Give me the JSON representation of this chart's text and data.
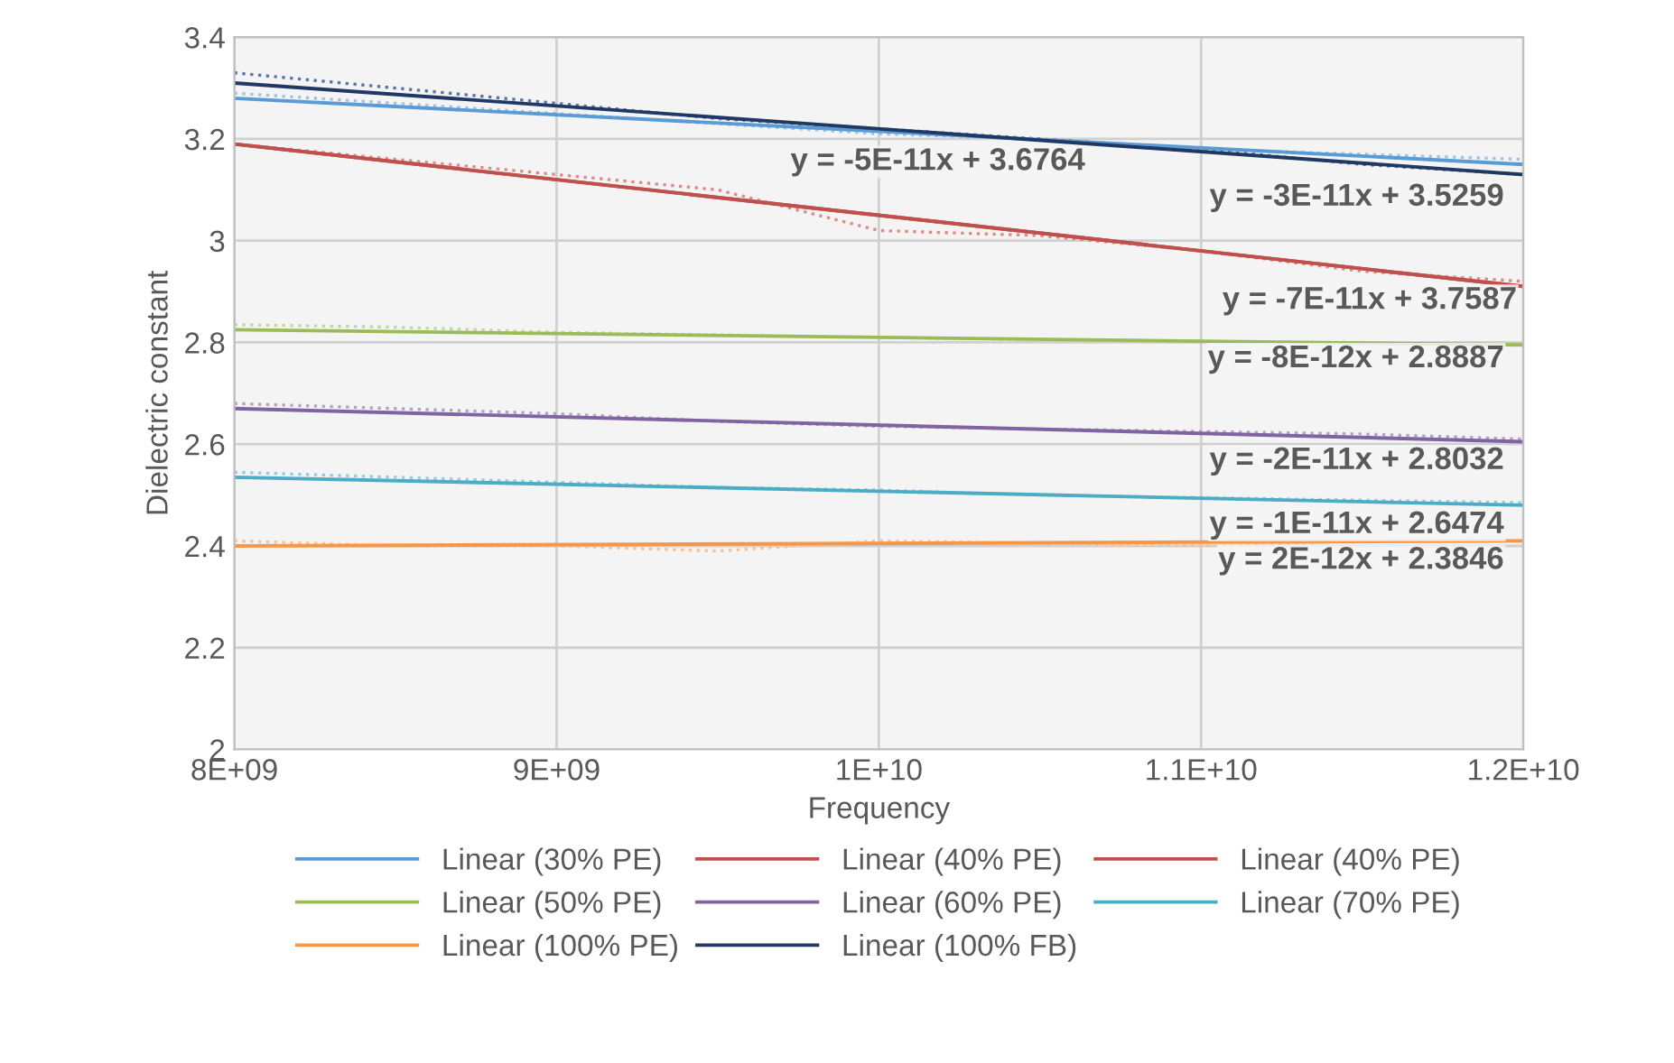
{
  "chart_data": {
    "type": "line",
    "xlabel": "Frequency",
    "ylabel": "Dielectric constant",
    "xlim": [
      8000000000,
      12000000000
    ],
    "xticks": [
      {
        "value": 8000000000,
        "label": "8E+09"
      },
      {
        "value": 9000000000,
        "label": "9E+09"
      },
      {
        "value": 10000000000,
        "label": "1E+10"
      },
      {
        "value": 11000000000,
        "label": "1.1E+10"
      },
      {
        "value": 12000000000,
        "label": "1.2E+10"
      }
    ],
    "ylim": [
      2,
      3.4
    ],
    "yticks": [
      2,
      2.2,
      2.4,
      2.6,
      2.8,
      3,
      3.2,
      3.4
    ],
    "grid": true,
    "legend": "bottom",
    "series": [
      {
        "line_style": "dotted",
        "color": "#9dc3e6",
        "x": [
          8000000000,
          8500000000,
          9000000000,
          9500000000,
          10000000000,
          10500000000,
          11000000000,
          11500000000,
          12000000000
        ],
        "values": [
          3.29,
          3.27,
          3.25,
          3.23,
          3.21,
          3.2,
          3.18,
          3.17,
          3.16
        ]
      },
      {
        "line_style": "dotted",
        "color": "#e08a88",
        "x": [
          8000000000,
          8500000000,
          9000000000,
          9500000000,
          10000000000,
          10500000000,
          11000000000,
          11500000000,
          12000000000
        ],
        "values": [
          3.19,
          3.16,
          3.13,
          3.1,
          3.02,
          3.01,
          2.98,
          2.94,
          2.92
        ]
      },
      {
        "line_style": "dotted",
        "color": "#c3d69b",
        "x": [
          8000000000,
          8500000000,
          9000000000,
          9500000000,
          10000000000,
          10500000000,
          11000000000,
          11500000000,
          12000000000
        ],
        "values": [
          2.835,
          2.83,
          2.82,
          2.815,
          2.81,
          2.805,
          2.8,
          2.8,
          2.795
        ]
      },
      {
        "line_style": "dotted",
        "color": "#b3a2c7",
        "x": [
          8000000000,
          8500000000,
          9000000000,
          9500000000,
          10000000000,
          10500000000,
          11000000000,
          11500000000,
          12000000000
        ],
        "values": [
          2.68,
          2.67,
          2.66,
          2.645,
          2.635,
          2.63,
          2.625,
          2.62,
          2.61
        ]
      },
      {
        "line_style": "dotted",
        "color": "#93cddd",
        "x": [
          8000000000,
          8500000000,
          9000000000,
          9500000000,
          10000000000,
          10500000000,
          11000000000,
          11500000000,
          12000000000
        ],
        "values": [
          2.545,
          2.535,
          2.525,
          2.515,
          2.51,
          2.5,
          2.495,
          2.49,
          2.485
        ]
      },
      {
        "line_style": "dotted",
        "color": "#fac090",
        "x": [
          8000000000,
          8500000000,
          9000000000,
          9500000000,
          10000000000,
          10500000000,
          11000000000,
          11500000000,
          12000000000
        ],
        "values": [
          2.41,
          2.4,
          2.4,
          2.39,
          2.41,
          2.405,
          2.4,
          2.41,
          2.41
        ]
      },
      {
        "line_style": "dotted",
        "color": "#5a74a8",
        "x": [
          8000000000,
          8500000000,
          9000000000,
          9500000000,
          10000000000,
          10500000000,
          11000000000,
          11500000000,
          12000000000
        ],
        "values": [
          3.33,
          3.3,
          3.27,
          3.24,
          3.22,
          3.2,
          3.18,
          3.15,
          3.13
        ]
      },
      {
        "name": "Linear (30% PE)",
        "color": "#5b9bd5",
        "x": [
          8000000000,
          12000000000
        ],
        "values": [
          3.28,
          3.15
        ]
      },
      {
        "name": "Linear (40% PE)",
        "color": "#c0504d",
        "x": [
          8000000000,
          12000000000
        ],
        "values": [
          3.19,
          2.91
        ]
      },
      {
        "name": "Linear (40% PE)",
        "color": "#c0504d",
        "x": [
          8000000000,
          12000000000
        ],
        "values": [
          3.19,
          2.91
        ]
      },
      {
        "name": "Linear (50% PE)",
        "color": "#9bbb59",
        "x": [
          8000000000,
          12000000000
        ],
        "values": [
          2.825,
          2.795
        ]
      },
      {
        "name": "Linear (60% PE)",
        "color": "#8064a2",
        "x": [
          8000000000,
          12000000000
        ],
        "values": [
          2.67,
          2.605
        ]
      },
      {
        "name": "Linear (70% PE)",
        "color": "#4bacc6",
        "x": [
          8000000000,
          12000000000
        ],
        "values": [
          2.535,
          2.48
        ]
      },
      {
        "name": "Linear (100% PE)",
        "color": "#f79646",
        "x": [
          8000000000,
          12000000000
        ],
        "values": [
          2.4,
          2.41
        ]
      },
      {
        "name": "Linear (100% FB)",
        "color": "#1f3864",
        "x": [
          8000000000,
          12000000000
        ],
        "values": [
          3.31,
          3.13
        ]
      }
    ],
    "annotations": [
      "y = -5E-11x + 3.6764",
      "y = -3E-11x + 3.5259",
      "y = -7E-11x + 3.7587",
      "y = -8E-12x + 2.8887",
      "y = -2E-11x + 2.8032",
      "y = -1E-11x + 2.6474",
      "y = 2E-12x + 2.3846"
    ]
  }
}
